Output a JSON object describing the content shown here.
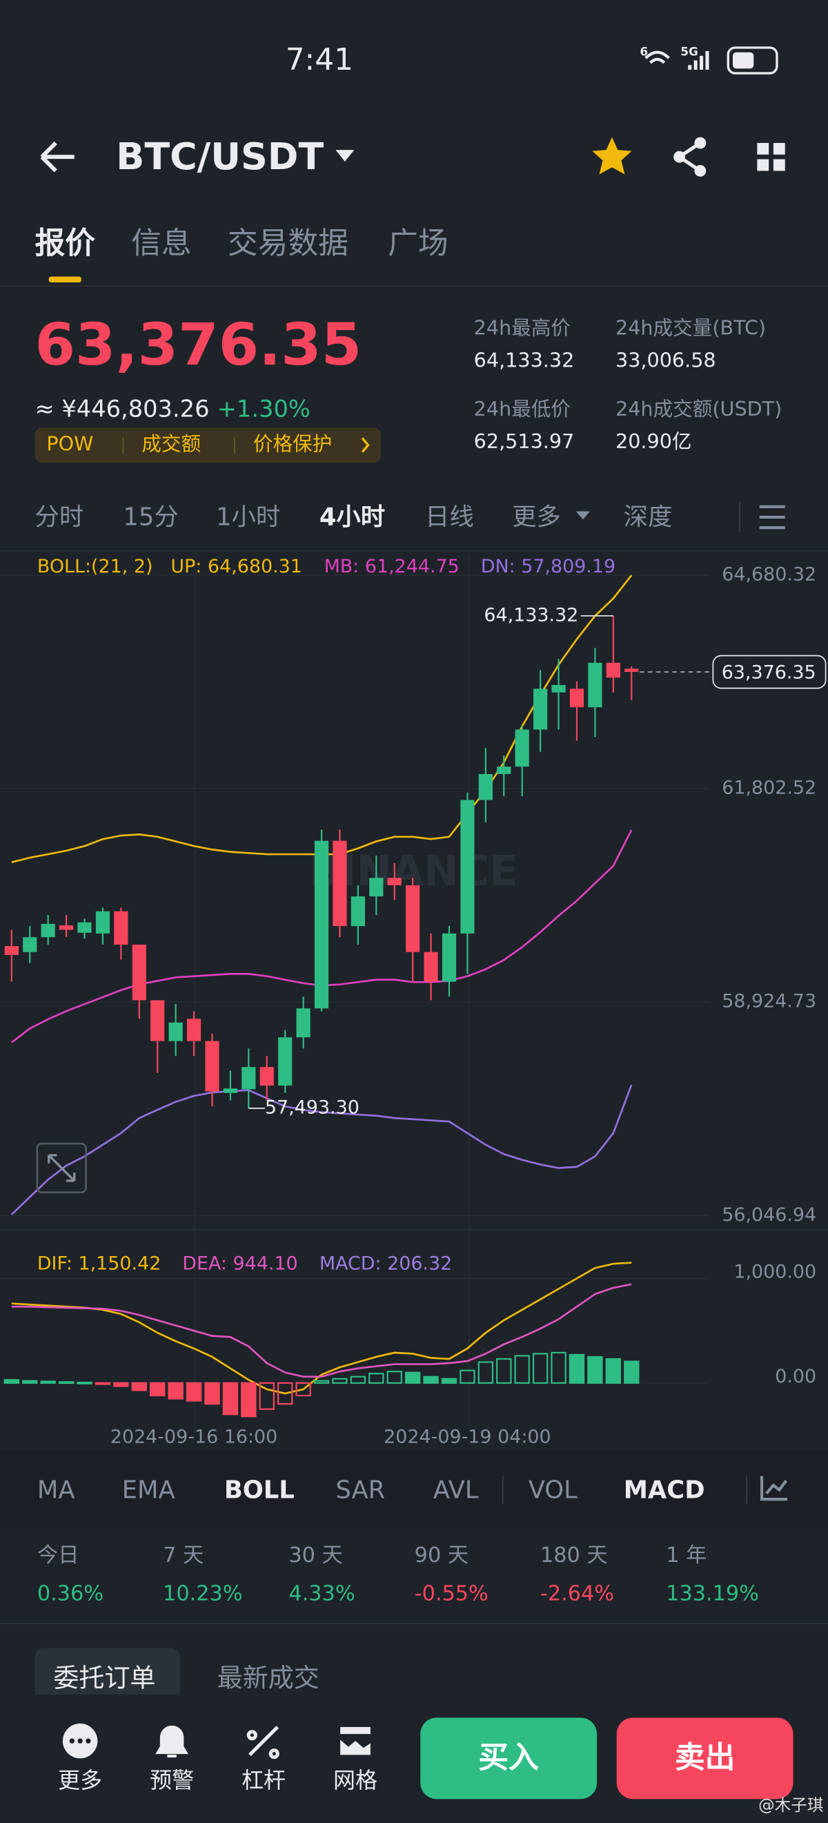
{
  "status_bar": {
    "time": "7:41",
    "wifi": "6",
    "signal": "5G"
  },
  "header": {
    "pair": "BTC/USDT"
  },
  "tabs": [
    "报价",
    "信息",
    "交易数据",
    "广场"
  ],
  "ticker": {
    "price": "63,376.35",
    "cny": "≈ ¥446,803.26",
    "change": "+1.30%",
    "tags": [
      "POW",
      "成交额",
      "价格保护"
    ],
    "stats": [
      {
        "label": "24h最高价",
        "value": "64,133.32"
      },
      {
        "label": "24h成交量(BTC)",
        "value": "33,006.58"
      },
      {
        "label": "24h最低价",
        "value": "62,513.97"
      },
      {
        "label": "24h成交额(USDT)",
        "value": "20.90亿"
      }
    ]
  },
  "timeframes": [
    "分时",
    "15分",
    "1小时",
    "4小时",
    "日线",
    "更多",
    "深度"
  ],
  "chart_data": [
    {
      "type": "candlestick",
      "indicator": "BOLL:(21, 2)",
      "watermark": "BINANCE",
      "up_color": "#2ebd85",
      "down_color": "#f6465d",
      "open": [
        59680,
        59600,
        59800,
        59960,
        59860,
        59850,
        60150,
        59700,
        58950,
        58400,
        58700,
        58400,
        57700,
        57750,
        58050,
        57800,
        58450,
        58840,
        61100,
        59950,
        60350,
        60600,
        60500,
        59600,
        59200,
        59850,
        61650,
        62000,
        62100,
        62600,
        63100,
        63150,
        62900,
        63500,
        63420
      ],
      "high": [
        59900,
        59950,
        60100,
        60100,
        60050,
        60200,
        60200,
        59700,
        58950,
        58900,
        58800,
        58500,
        58000,
        58300,
        58200,
        58550,
        59000,
        61250,
        61250,
        60500,
        60900,
        60800,
        60600,
        59850,
        59950,
        61750,
        62350,
        62250,
        62650,
        63400,
        63550,
        63250,
        63700,
        64133.32,
        63450
      ],
      "low": [
        59200,
        59450,
        59700,
        59800,
        59780,
        59700,
        59500,
        58700,
        57970,
        58200,
        58200,
        57520,
        57600,
        57493.3,
        57600,
        57700,
        58300,
        58800,
        59800,
        59700,
        60100,
        60300,
        59200,
        58950,
        59000,
        59300,
        61350,
        61700,
        61700,
        62300,
        62600,
        62450,
        62500,
        63100,
        63000
      ],
      "close": [
        59560,
        59800,
        59980,
        59900,
        60000,
        60150,
        59700,
        58950,
        58400,
        58650,
        58400,
        57720,
        57760,
        58050,
        57800,
        58450,
        58840,
        61100,
        59950,
        60350,
        60600,
        60500,
        59600,
        59200,
        59850,
        61650,
        62000,
        62100,
        62600,
        63150,
        63200,
        62900,
        63500,
        63300,
        63376.35
      ],
      "series": [
        {
          "name": "UP: 64,680.31",
          "color": "#f0b90b",
          "values": [
            60810,
            60872,
            60919,
            60966,
            61029,
            61123,
            61170,
            61186,
            61154,
            61092,
            61029,
            60982,
            60951,
            60935,
            60919,
            60919,
            60919,
            60919,
            60919,
            60998,
            61092,
            61154,
            61154,
            61123,
            61154,
            61468,
            61781,
            62157,
            62643,
            63066,
            63473,
            63818,
            64132,
            64367,
            64680.31
          ]
        },
        {
          "name": "MB: 61,244.75",
          "color": "#e040c0",
          "values": [
            58381,
            58569,
            58694,
            58804,
            58898,
            58992,
            59086,
            59164,
            59211,
            59258,
            59274,
            59290,
            59305,
            59305,
            59274,
            59227,
            59180,
            59149,
            59164,
            59195,
            59227,
            59227,
            59195,
            59195,
            59211,
            59274,
            59368,
            59493,
            59666,
            59869,
            60089,
            60292,
            60527,
            60762,
            61244.75
          ]
        },
        {
          "name": "DN: 57,809.19",
          "color": "#9370e0",
          "values": [
            56061,
            56297,
            56532,
            56720,
            56845,
            57002,
            57158,
            57362,
            57472,
            57581,
            57660,
            57707,
            57723,
            57738,
            57628,
            57519,
            57472,
            57440,
            57425,
            57409,
            57393,
            57362,
            57346,
            57331,
            57315,
            57158,
            57002,
            56876,
            56798,
            56735,
            56688,
            56704,
            56845,
            57158,
            57809.19
          ]
        }
      ],
      "high_label": "64,133.32",
      "low_label": "57,493.30",
      "last_price_label": "63,376.35",
      "ylim": [
        55858,
        64946
      ],
      "yticks": [
        {
          "value": 64680.32,
          "label": "64,680.32"
        },
        {
          "value": 61802.52,
          "label": "61,802.52"
        },
        {
          "value": 58924.73,
          "label": "58,924.73"
        },
        {
          "value": 56046.94,
          "label": "56,046.94"
        }
      ]
    },
    {
      "type": "macd",
      "up_color": "#2ebd85",
      "down_color": "#f6465d",
      "categories": [
        null,
        null,
        null,
        null,
        null,
        null,
        null,
        null,
        null,
        null,
        "2024-09-16 16:00",
        null,
        null,
        null,
        null,
        null,
        null,
        null,
        null,
        null,
        null,
        null,
        null,
        null,
        null,
        "2024-09-19 04:00",
        null,
        null,
        null,
        null,
        null,
        null,
        null,
        null,
        null
      ],
      "series": [
        {
          "name": "DIF: 1,150.42",
          "color": "#f0b90b",
          "kind": "line",
          "values": [
            760,
            750,
            740,
            730,
            720,
            700,
            660,
            580,
            480,
            400,
            330,
            250,
            140,
            30,
            -60,
            -100,
            -60,
            80,
            150,
            200,
            250,
            290,
            280,
            240,
            230,
            330,
            480,
            600,
            700,
            800,
            900,
            1000,
            1100,
            1140,
            1150.42
          ]
        },
        {
          "name": "DEA: 944.10",
          "color": "#e055c0",
          "kind": "line",
          "values": [
            730,
            730,
            725,
            720,
            715,
            710,
            690,
            650,
            600,
            550,
            500,
            450,
            440,
            350,
            190,
            100,
            60,
            60,
            110,
            140,
            160,
            180,
            180,
            180,
            190,
            210,
            280,
            370,
            440,
            520,
            610,
            730,
            850,
            910,
            944.1
          ]
        },
        {
          "name": "MACD: 206.32",
          "color": "#9b7ee0",
          "kind": "bar",
          "values": [
            30,
            20,
            15,
            10,
            5,
            -10,
            -30,
            -70,
            -120,
            -150,
            -170,
            -200,
            -300,
            -320,
            -250,
            -200,
            -120,
            20,
            40,
            60,
            90,
            110,
            100,
            60,
            40,
            120,
            200,
            230,
            260,
            280,
            290,
            270,
            250,
            230,
            206.32
          ]
        }
      ],
      "ylim": [
        -389,
        1278
      ],
      "yticks": [
        {
          "value": 1000,
          "label": "1,000.00"
        },
        {
          "value": 0,
          "label": "0.00"
        }
      ]
    }
  ],
  "indicators": [
    "MA",
    "EMA",
    "BOLL",
    "SAR",
    "AVL",
    "VOL",
    "MACD"
  ],
  "performance": [
    {
      "period": "今日",
      "change": "0.36%",
      "color": "#2ebd85"
    },
    {
      "period": "7 天",
      "change": "10.23%",
      "color": "#2ebd85"
    },
    {
      "period": "30 天",
      "change": "4.33%",
      "color": "#2ebd85"
    },
    {
      "period": "90 天",
      "change": "-0.55%",
      "color": "#f6465d"
    },
    {
      "period": "180 天",
      "change": "-2.64%",
      "color": "#f6465d"
    },
    {
      "period": "1 年",
      "change": "133.19%",
      "color": "#2ebd85"
    }
  ],
  "orders_tabs": [
    "委托订单",
    "最新成交"
  ],
  "bottom_bar": {
    "actions": [
      "更多",
      "预警",
      "杠杆",
      "网格"
    ],
    "buy": "买入",
    "sell": "卖出"
  },
  "watermark": "@木子琪"
}
